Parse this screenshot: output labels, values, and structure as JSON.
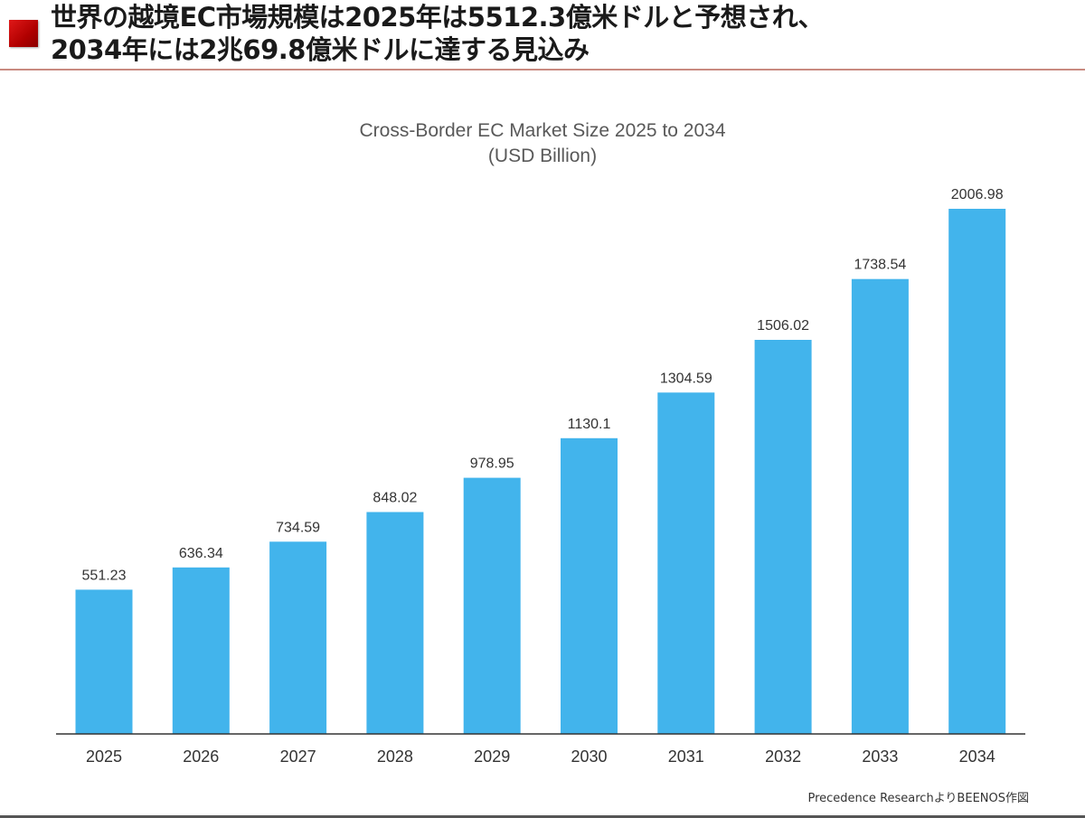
{
  "header": {
    "line1": "世界の越境EC市場規模は2025年は5512.3億米ドルと予想され、",
    "line2": "2034年には2兆69.8億米ドルに達する見込み"
  },
  "source": "Precedence ResearchよりBEENOS作図",
  "colors": {
    "bar": "#42b4ec",
    "accent": "#c00000"
  },
  "chart_data": {
    "type": "bar",
    "title": "Cross-Border EC Market Size 2025 to 2034",
    "subtitle": "(USD Billion)",
    "categories": [
      "2025",
      "2026",
      "2027",
      "2028",
      "2029",
      "2030",
      "2031",
      "2032",
      "2033",
      "2034"
    ],
    "values": [
      551.23,
      636.34,
      734.59,
      848.02,
      978.95,
      1130.1,
      1304.59,
      1506.02,
      1738.54,
      2006.98
    ],
    "value_labels": [
      "551.23",
      "636.34",
      "734.59",
      "848.02",
      "978.95",
      "1130.1",
      "1304.59",
      "1506.02",
      "1738.54",
      "2006.98"
    ],
    "ylim": [
      0,
      2006.98
    ],
    "grid": false,
    "legend": "none",
    "data_labels": true
  }
}
